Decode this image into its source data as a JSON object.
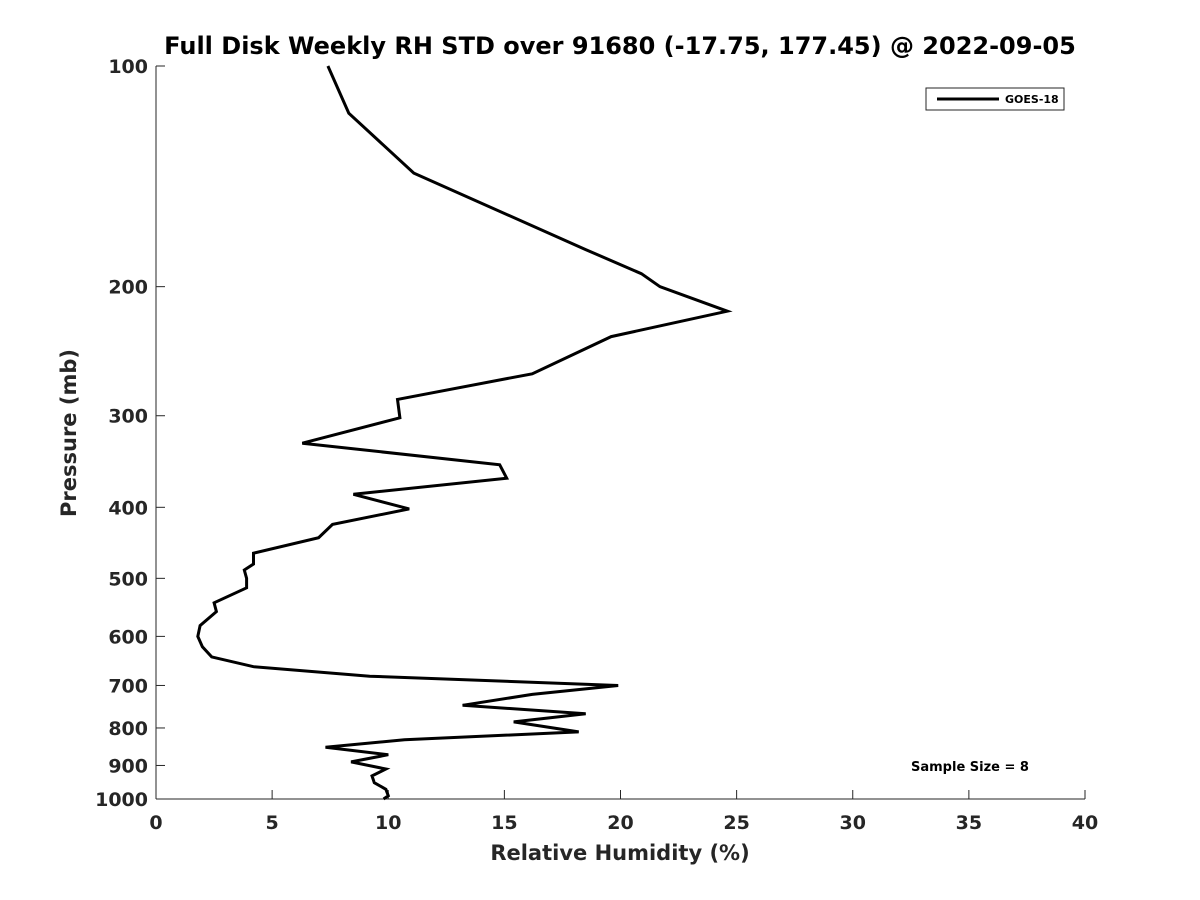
{
  "chart_data": {
    "type": "line",
    "title": "Full Disk Weekly RH STD over 91680 (-17.75, 177.45) @ 2022-09-05",
    "xlabel": "Relative Humidity (%)",
    "ylabel": "Pressure (mb)",
    "xlim": [
      0,
      40
    ],
    "ylim": [
      100,
      1000
    ],
    "yscale": "log",
    "y_reversed": true,
    "grid": false,
    "legend_position": "top-right",
    "x_ticks": [
      0,
      5,
      10,
      15,
      20,
      25,
      30,
      35,
      40
    ],
    "x_tick_labels": [
      "0",
      "5",
      "10",
      "15",
      "20",
      "25",
      "30",
      "35",
      "40"
    ],
    "y_ticks": [
      100,
      200,
      300,
      400,
      500,
      600,
      700,
      800,
      900,
      1000
    ],
    "y_tick_labels": [
      "100",
      "200",
      "300",
      "400",
      "500",
      "600",
      "700",
      "800",
      "900",
      "1000"
    ],
    "series": [
      {
        "name": "GOES-18",
        "color": "#000000",
        "x": [
          7.4,
          8.3,
          11.1,
          18.5,
          20.9,
          21.7,
          24.6,
          19.6,
          16.2,
          10.4,
          10.5,
          6.3,
          14.8,
          15.1,
          8.5,
          10.9,
          7.6,
          7.0,
          4.2,
          4.2,
          3.8,
          3.9,
          3.9,
          2.5,
          2.6,
          1.9,
          1.8,
          2.0,
          2.4,
          4.2,
          9.2,
          19.9,
          16.2,
          13.2,
          18.5,
          15.4,
          18.2,
          10.7,
          7.3,
          10.0,
          8.4,
          9.9,
          9.3,
          9.4,
          9.9,
          10.0,
          9.8
        ],
        "y": [
          100,
          116,
          140,
          178,
          192,
          200,
          216,
          234,
          263,
          285,
          302,
          327,
          350,
          365,
          384,
          402,
          422,
          440,
          462,
          478,
          487,
          500,
          515,
          540,
          555,
          580,
          600,
          620,
          640,
          660,
          680,
          700,
          720,
          745,
          765,
          785,
          810,
          830,
          850,
          870,
          890,
          910,
          930,
          950,
          970,
          990,
          1000
        ]
      }
    ],
    "annotations": [
      {
        "text": "Sample Size = 8",
        "position": "bottom-right"
      }
    ]
  }
}
